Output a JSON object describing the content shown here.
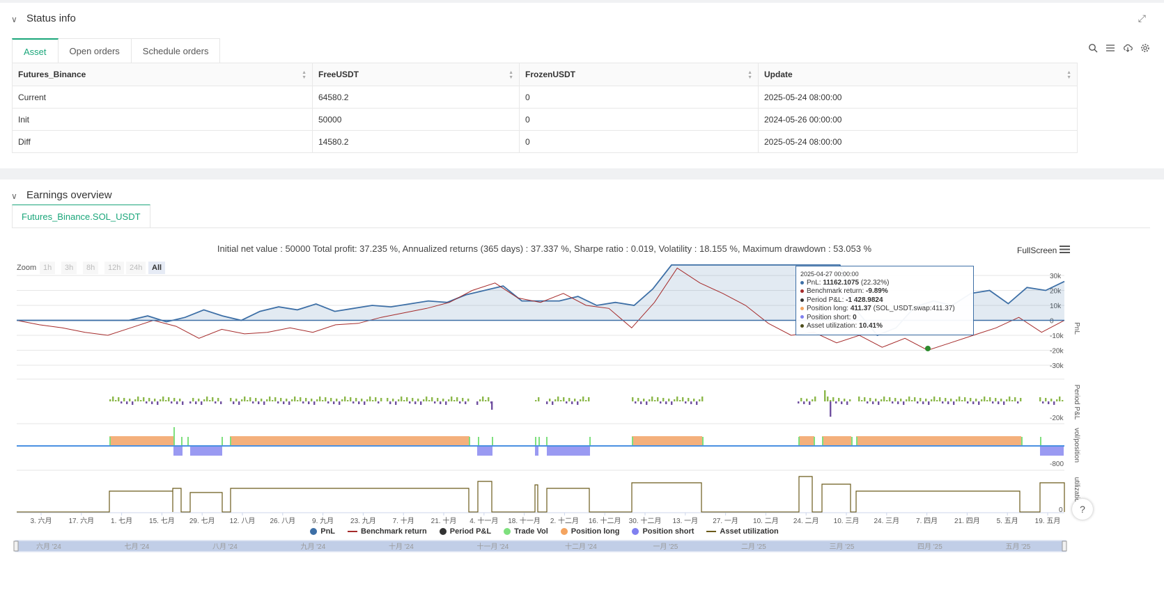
{
  "status": {
    "title": "Status info",
    "tabs": [
      "Asset",
      "Open orders",
      "Schedule orders"
    ],
    "table": {
      "headers": [
        "Futures_Binance",
        "FreeUSDT",
        "FrozenUSDT",
        "Update"
      ],
      "rows": [
        [
          "Current",
          "64580.2",
          "0",
          "2025-05-24 08:00:00"
        ],
        [
          "Init",
          "50000",
          "0",
          "2024-05-26 00:00:00"
        ],
        [
          "Diff",
          "14580.2",
          "0",
          "2025-05-24 08:00:00"
        ]
      ]
    }
  },
  "earnings": {
    "title": "Earnings overview",
    "tab": "Futures_Binance.SOL_USDT",
    "summary": "Initial net value : 50000 Total profit: 37.235 %, Annualized returns (365 days) : 37.337 %, Sharpe ratio : 0.019, Volatility : 18.155 %, Maximum drawdown : 53.053 %",
    "fullscreen": "FullScreen",
    "zoom": {
      "label": "Zoom",
      "buttons": [
        "1h",
        "3h",
        "8h",
        "12h",
        "24h",
        "All"
      ],
      "active": "All"
    },
    "tooltip": {
      "date": "2025-04-27 00:00:00",
      "rows": [
        {
          "label": "PnL: ",
          "value": "11162.1075",
          "extra": " (22.32%)",
          "color": "#3d6fa6"
        },
        {
          "label": "Benchmark return: ",
          "value": "-9.89%",
          "extra": "",
          "color": "#a52a2a"
        },
        {
          "label": "Period P&L: ",
          "value": "-1 428.9824",
          "extra": "",
          "color": "#333333"
        },
        {
          "label": "Position long: ",
          "value": "411.37",
          "extra": " (SOL_USDT.swap:411.37)",
          "color": "#f4a460"
        },
        {
          "label": "Position short: ",
          "value": "0",
          "extra": "",
          "color": "#8080f0"
        },
        {
          "label": "Asset utilization: ",
          "value": "10.41%",
          "extra": "",
          "color": "#4c4c1a"
        }
      ]
    },
    "legend": [
      {
        "name": "PnL",
        "color": "#3d6fa6",
        "shape": "dot"
      },
      {
        "name": "Benchmark return",
        "color": "#a52a2a",
        "shape": "line"
      },
      {
        "name": "Period P&L",
        "color": "#333333",
        "shape": "dot"
      },
      {
        "name": "Trade Vol",
        "color": "#7ee07e",
        "shape": "dot"
      },
      {
        "name": "Position long",
        "color": "#f4a460",
        "shape": "dot"
      },
      {
        "name": "Position short",
        "color": "#8080f0",
        "shape": "dot"
      },
      {
        "name": "Asset utilization",
        "color": "#6b5a1a",
        "shape": "line"
      }
    ]
  },
  "chart_data": {
    "type": "line",
    "x_ticks": [
      "3. 六月",
      "17. 六月",
      "1. 七月",
      "15. 七月",
      "29. 七月",
      "12. 八月",
      "26. 八月",
      "9. 九月",
      "23. 九月",
      "7. 十月",
      "21. 十月",
      "4. 十一月",
      "18. 十一月",
      "2. 十二月",
      "16. 十二月",
      "30. 十二月",
      "13. 一月",
      "27. 一月",
      "10. 二月",
      "24. 二月",
      "10. 三月",
      "24. 三月",
      "7. 四月",
      "21. 四月",
      "5. 五月",
      "19. 五月"
    ],
    "navigator_ticks": [
      "六月 '24",
      "七月 '24",
      "八月 '24",
      "九月 '24",
      "十月 '24",
      "十一月 '24",
      "十二月 '24",
      "一月 '25",
      "二月 '25",
      "三月 '25",
      "四月 '25",
      "五月 '25"
    ],
    "pnl_axis": {
      "ticks": [
        "30k",
        "20k",
        "10k",
        "0",
        "-10k",
        "-20k",
        "-30k"
      ],
      "values": [
        30000,
        20000,
        10000,
        0,
        -10000,
        -20000,
        -30000
      ],
      "label": "PnL"
    },
    "period_axis": {
      "ticks": [
        "-20k"
      ],
      "label": "Period P&L"
    },
    "position_axis": {
      "ticks": [
        "-800"
      ],
      "label": "vol/position"
    },
    "util_axis": {
      "ticks": [
        "0"
      ],
      "label": "utilizatio..."
    },
    "pnl": [
      0,
      0,
      0,
      0,
      0,
      0,
      0,
      3000,
      -1000,
      2000,
      7000,
      3000,
      0,
      6000,
      9000,
      7000,
      11000,
      6000,
      8000,
      10000,
      9000,
      11000,
      13000,
      12000,
      17000,
      20000,
      23000,
      13000,
      13000,
      13000,
      16000,
      10000,
      12000,
      10000,
      21000,
      37000,
      37000,
      37000,
      37000,
      37000,
      37000,
      37000,
      37000,
      37000,
      37000,
      5000,
      -10000,
      -5000,
      9000,
      13000,
      10000,
      18000,
      20000,
      11162,
      22000,
      20000,
      26000
    ],
    "benchmark": [
      0,
      -3000,
      -5000,
      -8000,
      -10000,
      -5000,
      0,
      -4000,
      -12000,
      -6000,
      -9000,
      -8000,
      -5000,
      -8000,
      -3000,
      -2000,
      2000,
      5000,
      8000,
      12000,
      20000,
      25000,
      15000,
      12000,
      18000,
      10000,
      8000,
      -5000,
      12000,
      35000,
      25000,
      18000,
      10000,
      -2000,
      -10000,
      -8000,
      -15000,
      -10000,
      -18000,
      -12000,
      -20000,
      -15000,
      -10000,
      -5000,
      2000,
      -8000,
      0
    ],
    "legend_position": "bottom"
  }
}
